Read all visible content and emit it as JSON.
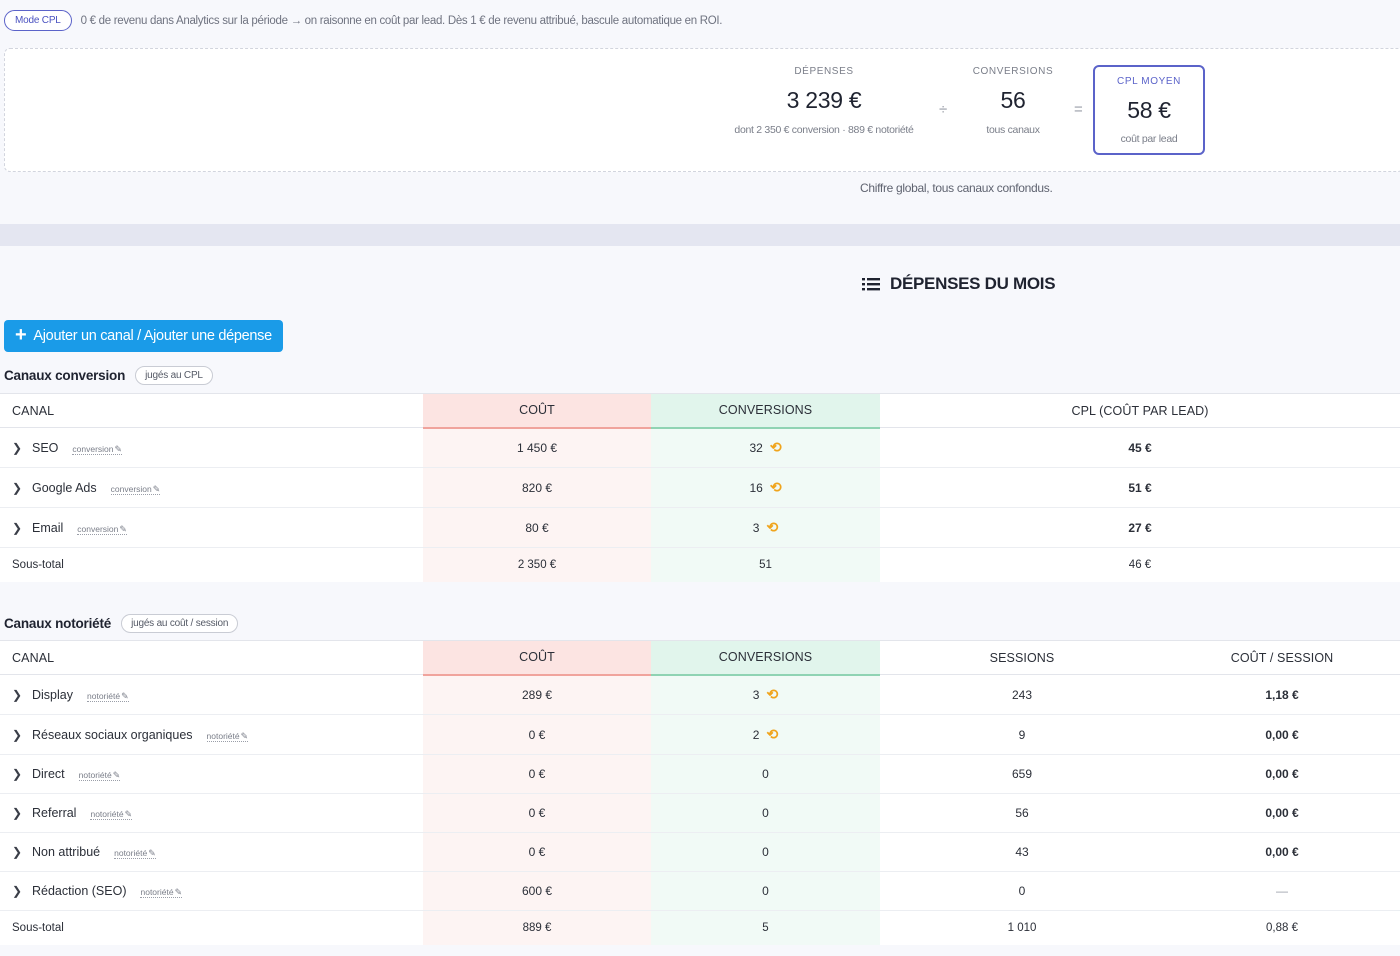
{
  "mode": {
    "pill": "Mode CPL",
    "text": "0 € de revenu dans Analytics sur la période → on raisonne en coût par lead. Dès 1 € de revenu attribué, bascule automatique en ROI."
  },
  "kpis": {
    "depenses": {
      "label": "Dépenses",
      "value": "3 239 €",
      "sub": "dont 2 350 € conversion · 889 € notoriété"
    },
    "div_op": "÷",
    "conversions": {
      "label": "Conversions",
      "value": "56",
      "sub": "tous canaux"
    },
    "eq_op": "=",
    "cpl": {
      "label": "CPL moyen",
      "value": "58 €",
      "sub": "coût par lead"
    }
  },
  "note": "Chiffre global, tous canaux confondus.",
  "section_title": "DÉPENSES DU MOIS",
  "add_button": {
    "plus": "+",
    "label": "Ajouter un canal / Ajouter une dépense"
  },
  "conversion_group": {
    "title": "Canaux conversion",
    "badge": "jugés au CPL",
    "headers": {
      "canal": "CANAL",
      "cost": "COÛT",
      "conv": "CONVERSIONS",
      "cpl": "CPL (COÛT PAR LEAD)"
    },
    "rows": [
      {
        "name": "SEO",
        "tag": "conversion",
        "cost": "1 450 €",
        "conv": "32",
        "cpl": "45 €"
      },
      {
        "name": "Google Ads",
        "tag": "conversion",
        "cost": "820 €",
        "conv": "16",
        "cpl": "51 €"
      },
      {
        "name": "Email",
        "tag": "conversion",
        "cost": "80 €",
        "conv": "3",
        "cpl": "27 €"
      }
    ],
    "subtotal": {
      "label": "Sous-total",
      "cost": "2 350 €",
      "conv": "51",
      "cpl": "46 €"
    }
  },
  "awareness_group": {
    "title": "Canaux notoriété",
    "badge": "jugés au coût / session",
    "headers": {
      "canal": "CANAL",
      "cost": "COÛT",
      "conv": "CONVERSIONS",
      "sessions": "SESSIONS",
      "cps": "COÛT / SESSION"
    },
    "rows": [
      {
        "name": "Display",
        "tag": "notoriété",
        "cost": "289 €",
        "conv": "3",
        "undo": true,
        "sessions": "243",
        "cps": "1,18 €"
      },
      {
        "name": "Réseaux sociaux organiques",
        "tag": "notoriété",
        "cost": "0 €",
        "conv": "2",
        "undo": true,
        "sessions": "9",
        "cps": "0,00 €"
      },
      {
        "name": "Direct",
        "tag": "notoriété",
        "cost": "0 €",
        "conv": "0",
        "undo": false,
        "sessions": "659",
        "cps": "0,00 €"
      },
      {
        "name": "Referral",
        "tag": "notoriété",
        "cost": "0 €",
        "conv": "0",
        "undo": false,
        "sessions": "56",
        "cps": "0,00 €"
      },
      {
        "name": "Non attribué",
        "tag": "notoriété",
        "cost": "0 €",
        "conv": "0",
        "undo": false,
        "sessions": "43",
        "cps": "0,00 €"
      },
      {
        "name": "Rédaction (SEO)",
        "tag": "notoriété",
        "cost": "600 €",
        "conv": "0",
        "undo": false,
        "sessions": "0",
        "cps": "—"
      }
    ],
    "subtotal": {
      "label": "Sous-total",
      "cost": "889 €",
      "conv": "5",
      "sessions": "1 010",
      "cps": "0,88 €"
    }
  },
  "icons": {
    "chevron": "chevron-right-icon",
    "undo": "undo-icon",
    "edit": "pencil-icon",
    "list": "list-icon"
  },
  "colors": {
    "accent": "#5b63c9",
    "button": "#1a9be8",
    "cost_bg": "#fce4e2",
    "conv_bg": "#e1f5ec",
    "undo": "#f0a41c"
  }
}
